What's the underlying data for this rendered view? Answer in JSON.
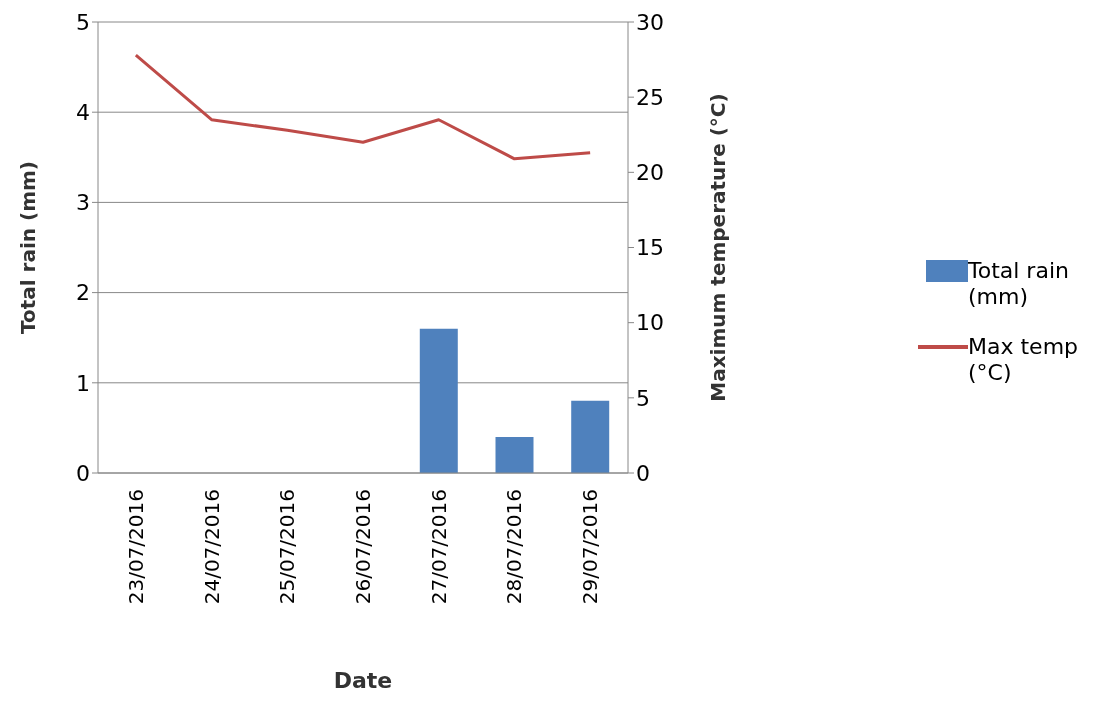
{
  "chart_data": {
    "type": "bar",
    "xlabel": "Date",
    "ylabel": "Total rain (mm)",
    "y2label": "Maximum temperature (°C)",
    "categories": [
      "23/07/2016",
      "24/07/2016",
      "25/07/2016",
      "26/07/2016",
      "27/07/2016",
      "28/07/2016",
      "29/07/2016"
    ],
    "series": [
      {
        "name": "Total rain (mm)",
        "color": "#4f81bd",
        "values": [
          0,
          0,
          0,
          0,
          1.6,
          0.4,
          0.8
        ]
      },
      {
        "name": "Max temp (°C)",
        "type": "line",
        "axis": "y2",
        "color": "#be4b48",
        "marker": "none",
        "values": [
          27.8,
          23.5,
          22.8,
          22.0,
          23.5,
          20.9,
          21.3
        ]
      }
    ],
    "ylim": [
      0,
      5
    ],
    "yticks": [
      0,
      1,
      2,
      3,
      4,
      5
    ],
    "y2lim": [
      0,
      30
    ],
    "y2ticks": [
      0,
      5,
      10,
      15,
      20,
      25,
      30
    ],
    "grid": "y",
    "legend": "right"
  }
}
